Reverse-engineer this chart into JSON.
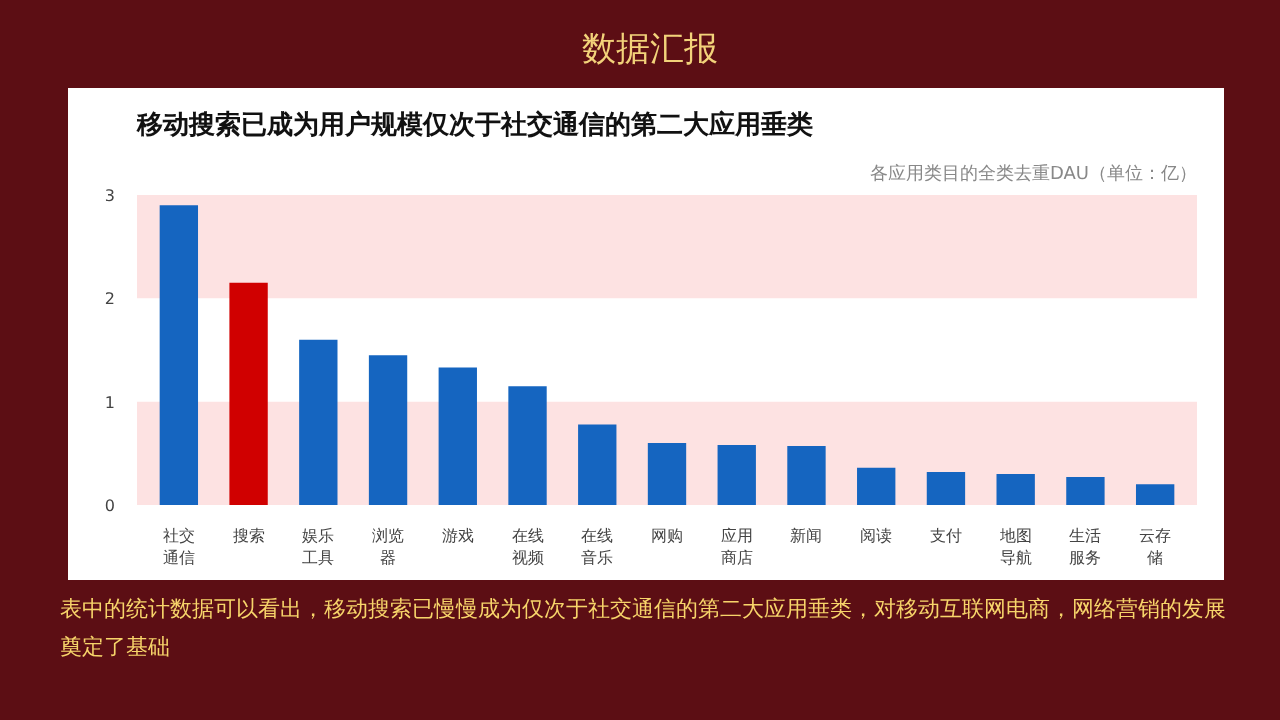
{
  "chart_data": {
    "type": "bar",
    "title": "移动搜索已成为用户规模仅次于社交通信的第二大应用垂类",
    "subtitle": "各应用类目的全类去重DAU（单位：亿）",
    "categories": [
      "社交通信",
      "搜索",
      "娱乐工具",
      "浏览器",
      "游戏",
      "在线视频",
      "在线音乐",
      "网购",
      "应用商店",
      "新闻",
      "阅读",
      "支付",
      "地图导航",
      "生活服务",
      "云存储"
    ],
    "values": [
      2.9,
      2.15,
      1.6,
      1.45,
      1.33,
      1.15,
      0.78,
      0.6,
      0.58,
      0.57,
      0.36,
      0.32,
      0.3,
      0.27,
      0.2
    ],
    "colors": [
      "#1565c0",
      "#d00000",
      "#1565c0",
      "#1565c0",
      "#1565c0",
      "#1565c0",
      "#1565c0",
      "#1565c0",
      "#1565c0",
      "#1565c0",
      "#1565c0",
      "#1565c0",
      "#1565c0",
      "#1565c0",
      "#1565c0"
    ],
    "ylim": [
      0,
      3
    ],
    "yticks": [
      0,
      1,
      2,
      3
    ],
    "grid": false,
    "bands": [
      {
        "axis": "y",
        "from": 0,
        "to": 1,
        "color": "#fde2e2"
      },
      {
        "axis": "y",
        "from": 2,
        "to": 3,
        "color": "#fde2e2"
      }
    ],
    "annotations": [
      "数据汇报",
      "表中的统计数据可以看出，移动搜索已慢慢成为仅次于社交通信的第二大应用垂类，对移动互联网电商，网络营销的发展奠定了基础"
    ]
  }
}
